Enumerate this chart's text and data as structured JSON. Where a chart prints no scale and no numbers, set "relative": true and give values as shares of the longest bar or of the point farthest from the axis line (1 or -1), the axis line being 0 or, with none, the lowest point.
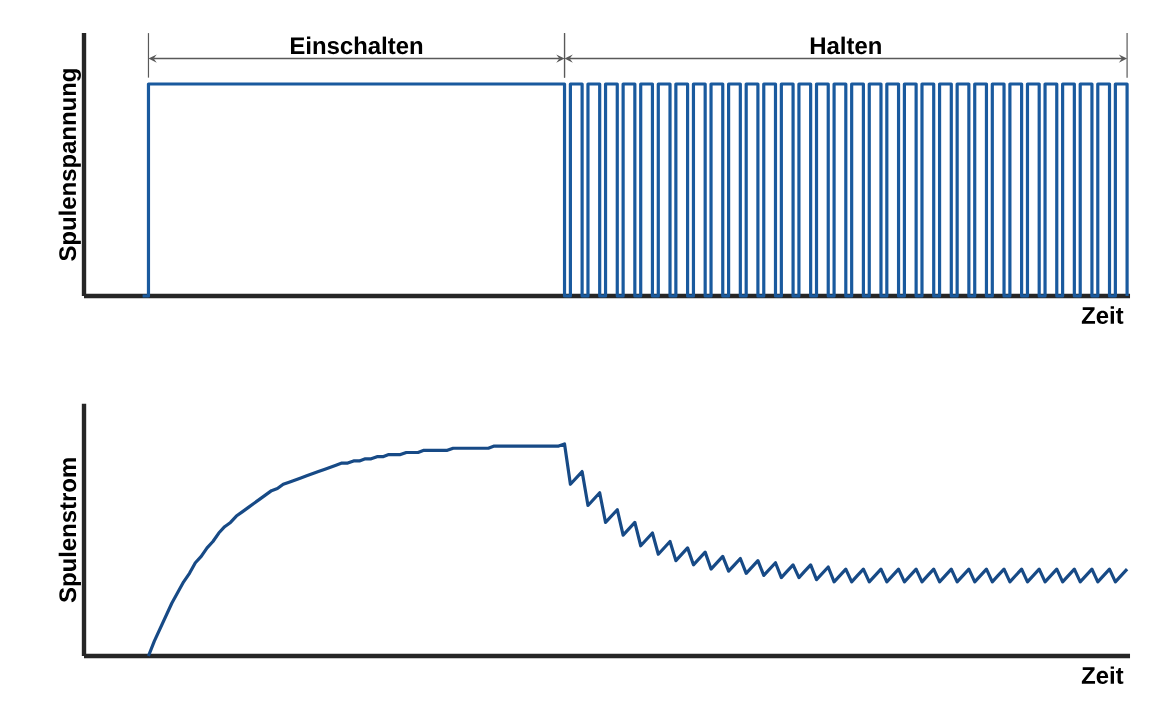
{
  "chart_data": [
    {
      "type": "step",
      "relative": true,
      "ylabel": "Spulenspannung",
      "xlabel": "Zeit",
      "color": "#1a5a9e",
      "categories": [
        null,
        null,
        null,
        null,
        null,
        null,
        null,
        null,
        null,
        null,
        null,
        null,
        null,
        null,
        null,
        null,
        null,
        null,
        null,
        null,
        null,
        null,
        null,
        null,
        null,
        null,
        null,
        null,
        null,
        null,
        null,
        null,
        null,
        null,
        null,
        null,
        null,
        null,
        null,
        null,
        null,
        null,
        null,
        null,
        null,
        null,
        null,
        null,
        null,
        null,
        null,
        null,
        null,
        null,
        null,
        null,
        null,
        null,
        null,
        null,
        null,
        null,
        null,
        null,
        null,
        null,
        null,
        null,
        null,
        null,
        null,
        null,
        null,
        null,
        null,
        null,
        null,
        null,
        null,
        null,
        null,
        null,
        null,
        null,
        null,
        null,
        null,
        null,
        null,
        null,
        null,
        null,
        null,
        null,
        null,
        null,
        null,
        null,
        null,
        null,
        null,
        null,
        null,
        null,
        null,
        null,
        null,
        null,
        null,
        null,
        null,
        null,
        null,
        null,
        null,
        null,
        null,
        null,
        null,
        null,
        null,
        null,
        null,
        null,
        null,
        null,
        null,
        null,
        null,
        null,
        null,
        null,
        null,
        null,
        null,
        null,
        null,
        null,
        null,
        null,
        null,
        null,
        null,
        null,
        null,
        null,
        null,
        null,
        null,
        null,
        null,
        null,
        null,
        null,
        null,
        null,
        null,
        null,
        null,
        null,
        null,
        null,
        null,
        null,
        null,
        null,
        null,
        null,
        null,
        null,
        null,
        null,
        null,
        null,
        null,
        null,
        null,
        null,
        null
      ],
      "values": [
        null,
        null,
        null,
        null,
        null,
        null,
        null,
        null,
        null,
        null,
        0,
        1,
        1,
        1,
        1,
        1,
        1,
        1,
        1,
        1,
        1,
        1,
        1,
        1,
        1,
        1,
        1,
        1,
        1,
        1,
        1,
        1,
        1,
        1,
        1,
        1,
        1,
        1,
        1,
        1,
        1,
        1,
        1,
        1,
        1,
        1,
        1,
        1,
        1,
        1,
        1,
        1,
        1,
        1,
        1,
        1,
        1,
        1,
        1,
        1,
        1,
        1,
        1,
        1,
        1,
        1,
        1,
        1,
        1,
        1,
        1,
        1,
        1,
        1,
        1,
        1,
        1,
        1,
        1,
        1,
        1,
        1,
        0,
        1,
        1,
        0,
        1,
        1,
        0,
        1,
        1,
        0,
        1,
        1,
        0,
        1,
        1,
        0,
        1,
        1,
        0,
        1,
        1,
        0,
        1,
        1,
        0,
        1,
        1,
        0,
        1,
        1,
        0,
        1,
        1,
        0,
        1,
        1,
        0,
        1,
        1,
        0,
        1,
        1,
        0,
        1,
        1,
        0,
        1,
        1,
        0,
        1,
        1,
        0,
        1,
        1,
        0,
        1,
        1,
        0,
        1,
        1,
        0,
        1,
        1,
        0,
        1,
        1,
        0,
        1,
        1,
        0,
        1,
        1,
        0,
        1,
        1,
        0,
        1,
        1,
        0,
        1,
        1,
        0,
        1,
        1,
        0,
        1,
        1,
        0,
        1,
        1,
        0,
        1,
        1,
        0,
        1,
        1,
        0
      ],
      "annotations": [
        "Einschalten",
        "Halten"
      ]
    },
    {
      "type": "line",
      "relative": true,
      "ylabel": "Spulenstrom",
      "xlabel": "Zeit",
      "color": "#174a86",
      "categories": [
        null,
        null,
        null,
        null,
        null,
        null,
        null,
        null,
        null,
        null,
        null,
        null,
        null,
        null,
        null,
        null,
        null,
        null,
        null,
        null,
        null,
        null,
        null,
        null,
        null,
        null,
        null,
        null,
        null,
        null,
        null,
        null,
        null,
        null,
        null,
        null,
        null,
        null,
        null,
        null,
        null,
        null,
        null,
        null,
        null,
        null,
        null,
        null,
        null,
        null,
        null,
        null,
        null,
        null,
        null,
        null,
        null,
        null,
        null,
        null,
        null,
        null,
        null,
        null,
        null,
        null,
        null,
        null,
        null,
        null,
        null,
        null,
        null,
        null,
        null,
        null,
        null,
        null,
        null,
        null,
        null,
        null,
        null,
        null,
        null,
        null,
        null,
        null,
        null,
        null,
        null,
        null,
        null,
        null,
        null,
        null,
        null,
        null,
        null,
        null,
        null,
        null,
        null,
        null,
        null,
        null,
        null,
        null,
        null,
        null,
        null,
        null,
        null,
        null,
        null,
        null,
        null,
        null,
        null,
        null,
        null,
        null,
        null,
        null,
        null,
        null,
        null,
        null,
        null,
        null,
        null,
        null,
        null,
        null,
        null,
        null,
        null,
        null,
        null,
        null,
        null,
        null,
        null,
        null,
        null,
        null,
        null,
        null,
        null,
        null,
        null,
        null,
        null,
        null,
        null,
        null,
        null,
        null,
        null,
        null,
        null,
        null,
        null,
        null,
        null,
        null,
        null,
        null,
        null,
        null,
        null,
        null,
        null,
        null,
        null,
        null,
        null,
        null,
        null
      ],
      "values": [
        null,
        null,
        null,
        null,
        null,
        null,
        null,
        null,
        null,
        null,
        null,
        0,
        0.07,
        0.13,
        0.19,
        0.25,
        0.3,
        0.35,
        0.39,
        0.44,
        0.47,
        0.51,
        0.54,
        0.58,
        0.61,
        0.63,
        0.66,
        0.68,
        0.7,
        0.72,
        0.74,
        0.76,
        0.78,
        0.79,
        0.81,
        0.82,
        0.83,
        0.84,
        0.85,
        0.86,
        0.87,
        0.88,
        0.89,
        0.9,
        0.91,
        0.91,
        0.92,
        0.92,
        0.93,
        0.93,
        0.94,
        0.94,
        0.95,
        0.95,
        0.95,
        0.96,
        0.96,
        0.96,
        0.97,
        0.97,
        0.97,
        0.97,
        0.97,
        0.98,
        0.98,
        0.98,
        0.98,
        0.98,
        0.98,
        0.98,
        0.99,
        0.99,
        0.99,
        0.99,
        0.99,
        0.99,
        0.99,
        0.99,
        0.99,
        0.99,
        0.99,
        0.99,
        1,
        0.81,
        0.84,
        0.87,
        0.71,
        0.74,
        0.77,
        0.63,
        0.66,
        0.69,
        0.57,
        0.6,
        0.63,
        0.52,
        0.55,
        0.58,
        0.48,
        0.51,
        0.54,
        0.45,
        0.48,
        0.51,
        0.43,
        0.46,
        0.49,
        0.41,
        0.44,
        0.47,
        0.4,
        0.43,
        0.46,
        0.39,
        0.42,
        0.45,
        0.38,
        0.41,
        0.44,
        0.37,
        0.4,
        0.43,
        0.37,
        0.4,
        0.43,
        0.36,
        0.39,
        0.42,
        0.35,
        0.38,
        0.41,
        0.35,
        0.38,
        0.41,
        0.35,
        0.38,
        0.41,
        0.35,
        0.38,
        0.41,
        0.35,
        0.38,
        0.41,
        0.35,
        0.38,
        0.41,
        0.35,
        0.38,
        0.41,
        0.35,
        0.38,
        0.41,
        0.35,
        0.38,
        0.41,
        0.35,
        0.38,
        0.41,
        0.35,
        0.38,
        0.41,
        0.35,
        0.38,
        0.41,
        0.35,
        0.38,
        0.41,
        0.35,
        0.38,
        0.41,
        0.35,
        0.38,
        0.41,
        0.35,
        0.38,
        0.41,
        0.35,
        0.38,
        0.41
      ]
    }
  ]
}
